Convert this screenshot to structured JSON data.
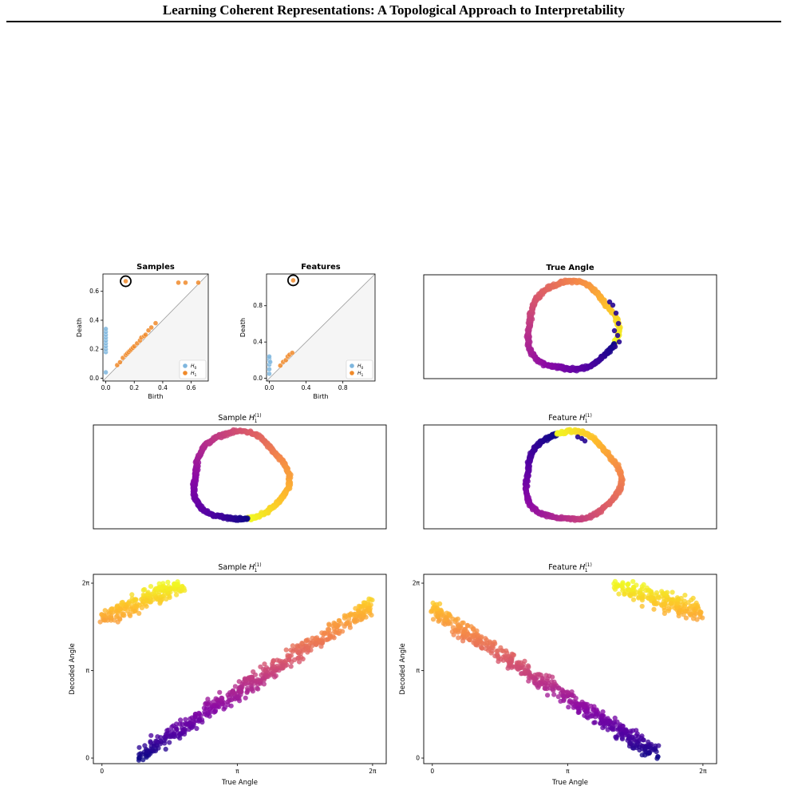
{
  "header": {
    "title": "Learning Coherent Representations: A Topological Approach to Interpretability"
  },
  "colors": {
    "h0": "#7eb6de",
    "h1": "#f08a2a",
    "plasma_low": "#0d0887",
    "plasma_high": "#f0f921",
    "axis": "#000000"
  },
  "figure": {
    "panels": {
      "samples_pd": {
        "title": "Samples",
        "xlabel": "Birth",
        "ylabel": "Death",
        "xticks": [
          "0.0",
          "0.2",
          "0.4",
          "0.6"
        ],
        "yticks": [
          "0.0",
          "0.2",
          "0.4",
          "0.6"
        ],
        "legend": [
          "H_0",
          "H_1"
        ]
      },
      "features_pd": {
        "title": "Features",
        "xlabel": "Birth",
        "ylabel": "Death",
        "xticks": [
          "0.0",
          "0.4",
          "0.8"
        ],
        "yticks": [
          "0.0",
          "0.4",
          "0.8"
        ],
        "legend": [
          "H_0",
          "H_1"
        ]
      },
      "true_angle": {
        "title": "True Angle"
      },
      "sample_ring": {
        "title": "Sample H_1^(1)"
      },
      "feature_ring": {
        "title": "Feature H_1^(1)"
      },
      "sample_decoded": {
        "title": "Sample H_1^(1)",
        "xlabel": "True Angle",
        "ylabel": "Decoded Angle",
        "xticks": [
          "0",
          "π",
          "2π"
        ],
        "yticks": [
          "0",
          "π",
          "2π"
        ]
      },
      "feature_decoded": {
        "title": "Feature H_1^(1)",
        "xlabel": "True Angle",
        "ylabel": "Decoded Angle",
        "xticks": [
          "0",
          "π",
          "2π"
        ],
        "yticks": [
          "0",
          "π",
          "2π"
        ]
      }
    }
  },
  "chart_data": [
    {
      "type": "scatter",
      "title": "Samples",
      "xlabel": "Birth",
      "ylabel": "Death",
      "xlim": [
        -0.02,
        0.72
      ],
      "ylim": [
        -0.02,
        0.72
      ],
      "diagonal": true,
      "legend_position": "bottom-right",
      "series": [
        {
          "name": "H_0",
          "points": [
            [
              0,
              0.04
            ],
            [
              0,
              0.18
            ],
            [
              0,
              0.2
            ],
            [
              0,
              0.22
            ],
            [
              0,
              0.24
            ],
            [
              0,
              0.26
            ],
            [
              0,
              0.28
            ],
            [
              0,
              0.3
            ],
            [
              0,
              0.32
            ],
            [
              0,
              0.34
            ]
          ]
        },
        {
          "name": "H_1",
          "points": [
            [
              0.08,
              0.09
            ],
            [
              0.1,
              0.11
            ],
            [
              0.12,
              0.14
            ],
            [
              0.14,
              0.16
            ],
            [
              0.15,
              0.17
            ],
            [
              0.16,
              0.18
            ],
            [
              0.17,
              0.19
            ],
            [
              0.18,
              0.2
            ],
            [
              0.19,
              0.21
            ],
            [
              0.2,
              0.22
            ],
            [
              0.22,
              0.24
            ],
            [
              0.24,
              0.26
            ],
            [
              0.25,
              0.28
            ],
            [
              0.27,
              0.29
            ],
            [
              0.3,
              0.33
            ],
            [
              0.32,
              0.35
            ],
            [
              0.35,
              0.38
            ],
            [
              0.28,
              0.3
            ],
            [
              0.14,
              0.67
            ],
            [
              0.51,
              0.66
            ],
            [
              0.56,
              0.66
            ],
            [
              0.65,
              0.66
            ]
          ]
        }
      ],
      "highlight": [
        0.14,
        0.67
      ]
    },
    {
      "type": "scatter",
      "title": "Features",
      "xlabel": "Birth",
      "ylabel": "Death",
      "xlim": [
        -0.03,
        1.15
      ],
      "ylim": [
        -0.03,
        1.15
      ],
      "diagonal": true,
      "legend_position": "bottom-right",
      "series": [
        {
          "name": "H_0",
          "points": [
            [
              0,
              0.05
            ],
            [
              0,
              0.1
            ],
            [
              0,
              0.15
            ],
            [
              0,
              0.2
            ],
            [
              0,
              0.22
            ],
            [
              0,
              0.24
            ],
            [
              0.01,
              0.18
            ]
          ]
        },
        {
          "name": "H_1",
          "points": [
            [
              0.12,
              0.14
            ],
            [
              0.15,
              0.18
            ],
            [
              0.18,
              0.2
            ],
            [
              0.2,
              0.24
            ],
            [
              0.22,
              0.26
            ],
            [
              0.25,
              0.28
            ],
            [
              0.26,
              1.08
            ]
          ]
        }
      ],
      "highlight": [
        0.26,
        1.08
      ]
    },
    {
      "type": "scatter",
      "title": "Sample H_1^(1)",
      "xlabel": "True Angle",
      "ylabel": "Decoded Angle",
      "xlim": [
        -0.2,
        6.6
      ],
      "ylim": [
        -0.2,
        6.6
      ],
      "xtick_labels": [
        "0",
        "π",
        "2π"
      ],
      "ytick_labels": [
        "0",
        "π",
        "2π"
      ],
      "colormap": "plasma",
      "trend": [
        {
          "x": [
            0.85,
            6.28
          ],
          "y": [
            0.1,
            5.5
          ]
        },
        {
          "x": [
            0.0,
            1.9
          ],
          "y": [
            5.0,
            6.28
          ]
        }
      ]
    },
    {
      "type": "scatter",
      "title": "Feature H_1^(1)",
      "xlabel": "True Angle",
      "ylabel": "Decoded Angle",
      "xlim": [
        -0.2,
        6.6
      ],
      "ylim": [
        -0.2,
        6.6
      ],
      "xtick_labels": [
        "0",
        "π",
        "2π"
      ],
      "ytick_labels": [
        "0",
        "π",
        "2π"
      ],
      "colormap": "plasma",
      "trend": [
        {
          "x": [
            0.0,
            5.3
          ],
          "y": [
            5.3,
            0.05
          ]
        },
        {
          "x": [
            4.2,
            6.28
          ],
          "y": [
            6.28,
            5.2
          ]
        }
      ]
    }
  ]
}
